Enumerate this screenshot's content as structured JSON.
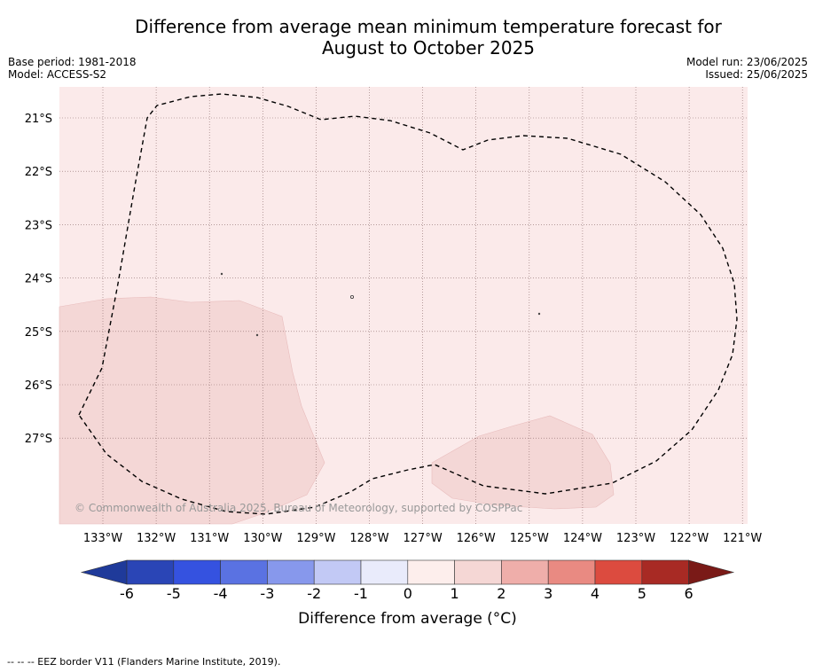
{
  "title": {
    "line1": "Difference from average mean minimum temperature forecast for",
    "line2": "August to October 2025"
  },
  "meta": {
    "base_period": "Base period: 1981-2018",
    "model": "Model: ACCESS-S2",
    "model_run": "Model run: 23/06/2025",
    "issued": "Issued: 25/06/2025"
  },
  "map": {
    "lat_labels": [
      "21°S",
      "22°S",
      "23°S",
      "24°S",
      "25°S",
      "26°S",
      "27°S"
    ],
    "lon_labels": [
      "133°W",
      "132°W",
      "131°W",
      "130°W",
      "129°W",
      "128°W",
      "127°W",
      "126°W",
      "125°W",
      "124°W",
      "123°W",
      "122°W",
      "121°W"
    ],
    "copyright": "© Commonwealth of Australia 2025, Bureau of Meteorology, supported by COSPPac",
    "background_color": "#fbeaea",
    "anomaly_patch_color": "#f4d7d6"
  },
  "colorbar": {
    "ticks": [
      "-6",
      "-5",
      "-4",
      "-3",
      "-2",
      "-1",
      "0",
      "1",
      "2",
      "3",
      "4",
      "5",
      "6"
    ],
    "colors": [
      "#1f3a9a",
      "#2a45b6",
      "#3552e0",
      "#5a72e2",
      "#8798ec",
      "#c2c9f5",
      "#e9ebfb",
      "#fdeeec",
      "#f5d7d5",
      "#efaeaa",
      "#e98a82",
      "#dc4b3f",
      "#a82a24",
      "#7a1a17"
    ],
    "label": "Difference from average (°C)"
  },
  "footnote": "-- -- -- EEZ border V11 (Flanders Marine Institute, 2019)."
}
